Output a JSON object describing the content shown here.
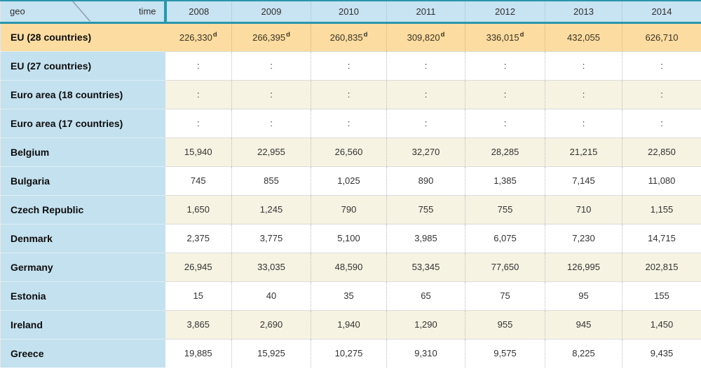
{
  "header": {
    "geo_label": "geo",
    "time_label": "time",
    "years": [
      "2008",
      "2009",
      "2010",
      "2011",
      "2012",
      "2013",
      "2014"
    ]
  },
  "rows": [
    {
      "label": "EU (28 countries)",
      "highlight": true,
      "values": [
        "226,330",
        "266,395",
        "260,835",
        "309,820",
        "336,015",
        "432,055",
        "626,710"
      ],
      "flags": [
        "d",
        "d",
        "d",
        "d",
        "d",
        "",
        ""
      ]
    },
    {
      "label": "EU (27 countries)",
      "values": [
        ":",
        ":",
        ":",
        ":",
        ":",
        ":",
        ":"
      ]
    },
    {
      "label": "Euro area (18 countries)",
      "values": [
        ":",
        ":",
        ":",
        ":",
        ":",
        ":",
        ":"
      ]
    },
    {
      "label": "Euro area (17 countries)",
      "values": [
        ":",
        ":",
        ":",
        ":",
        ":",
        ":",
        ":"
      ]
    },
    {
      "label": "Belgium",
      "values": [
        "15,940",
        "22,955",
        "26,560",
        "32,270",
        "28,285",
        "21,215",
        "22,850"
      ]
    },
    {
      "label": "Bulgaria",
      "values": [
        "745",
        "855",
        "1,025",
        "890",
        "1,385",
        "7,145",
        "11,080"
      ]
    },
    {
      "label": "Czech Republic",
      "values": [
        "1,650",
        "1,245",
        "790",
        "755",
        "755",
        "710",
        "1,155"
      ]
    },
    {
      "label": "Denmark",
      "values": [
        "2,375",
        "3,775",
        "5,100",
        "3,985",
        "6,075",
        "7,230",
        "14,715"
      ]
    },
    {
      "label": "Germany",
      "values": [
        "26,945",
        "33,035",
        "48,590",
        "53,345",
        "77,650",
        "126,995",
        "202,815"
      ]
    },
    {
      "label": "Estonia",
      "values": [
        "15",
        "40",
        "35",
        "65",
        "75",
        "95",
        "155"
      ]
    },
    {
      "label": "Ireland",
      "values": [
        "3,865",
        "2,690",
        "1,940",
        "1,290",
        "955",
        "945",
        "1,450"
      ]
    },
    {
      "label": "Greece",
      "values": [
        "19,885",
        "15,925",
        "10,275",
        "9,310",
        "9,575",
        "8,225",
        "9,435"
      ]
    }
  ],
  "colors": {
    "teal_border": "#2a96ad",
    "header_blue": "#c8e3f1",
    "label_blue": "#c4e1ef",
    "highlight_orange": "#fcdca0",
    "stripe_cream": "#f6f3e2",
    "stripe_white": "#ffffff"
  },
  "missing_value_symbol": ":",
  "flag_meaning_visible": "d"
}
